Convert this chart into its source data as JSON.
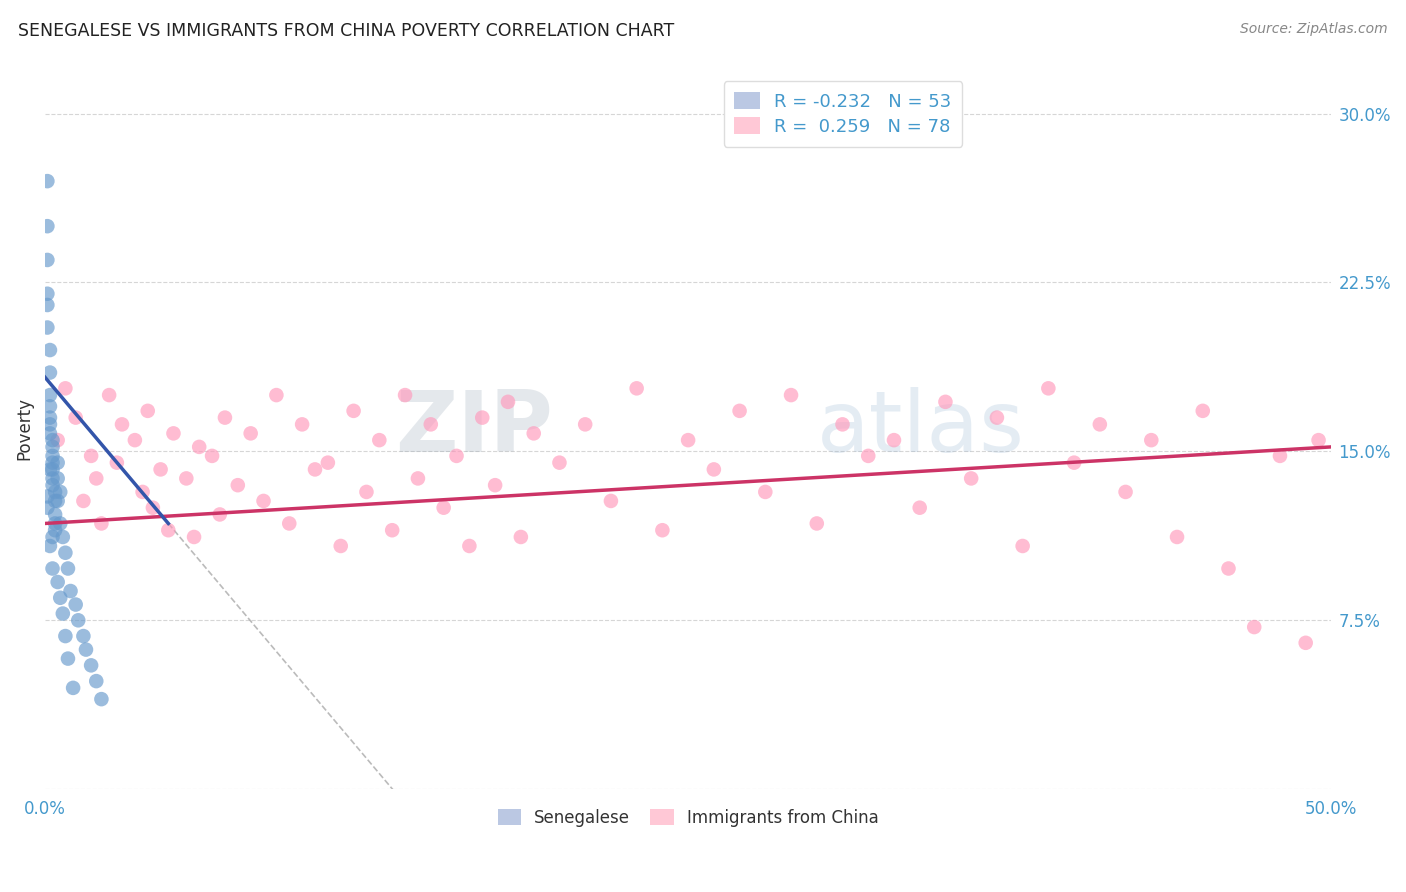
{
  "title": "SENEGALESE VS IMMIGRANTS FROM CHINA POVERTY CORRELATION CHART",
  "source": "Source: ZipAtlas.com",
  "ylabel": "Poverty",
  "xlim": [
    0.0,
    0.5
  ],
  "ylim": [
    0.0,
    0.32
  ],
  "yticks": [
    0.0,
    0.075,
    0.15,
    0.225,
    0.3
  ],
  "ytick_labels": [
    "",
    "7.5%",
    "15.0%",
    "22.5%",
    "30.0%"
  ],
  "xticks": [
    0.0,
    0.1,
    0.2,
    0.3,
    0.4,
    0.5
  ],
  "xtick_labels": [
    "0.0%",
    "",
    "",
    "",
    "",
    "50.0%"
  ],
  "grid_color": "#cccccc",
  "background_color": "#ffffff",
  "senegalese_color": "#6699cc",
  "china_color": "#ff99bb",
  "senegalese_R": -0.232,
  "senegalese_N": 53,
  "china_R": 0.259,
  "china_N": 78,
  "legend_label_1": "Senegalese",
  "legend_label_2": "Immigrants from China",
  "watermark_zip": "ZIP",
  "watermark_atlas": "atlas",
  "sen_line_x0": 0.0,
  "sen_line_y0": 0.183,
  "sen_line_x1": 0.048,
  "sen_line_y1": 0.118,
  "sen_line_end_x": 0.048,
  "dash_line_end_x": 0.22,
  "china_line_x0": 0.0,
  "china_line_y0": 0.118,
  "china_line_x1": 0.5,
  "china_line_y1": 0.152,
  "senegalese_x": [
    0.001,
    0.001,
    0.001,
    0.001,
    0.001,
    0.001,
    0.002,
    0.002,
    0.002,
    0.002,
    0.002,
    0.002,
    0.002,
    0.003,
    0.003,
    0.003,
    0.003,
    0.003,
    0.003,
    0.003,
    0.004,
    0.004,
    0.004,
    0.004,
    0.005,
    0.005,
    0.005,
    0.006,
    0.006,
    0.007,
    0.008,
    0.009,
    0.01,
    0.012,
    0.013,
    0.015,
    0.016,
    0.018,
    0.02,
    0.022,
    0.001,
    0.001,
    0.002,
    0.002,
    0.003,
    0.003,
    0.004,
    0.005,
    0.006,
    0.007,
    0.008,
    0.009,
    0.011
  ],
  "senegalese_y": [
    0.27,
    0.25,
    0.235,
    0.22,
    0.215,
    0.205,
    0.195,
    0.185,
    0.175,
    0.17,
    0.165,
    0.162,
    0.158,
    0.155,
    0.152,
    0.148,
    0.145,
    0.142,
    0.138,
    0.135,
    0.132,
    0.128,
    0.122,
    0.118,
    0.145,
    0.138,
    0.128,
    0.132,
    0.118,
    0.112,
    0.105,
    0.098,
    0.088,
    0.082,
    0.075,
    0.068,
    0.062,
    0.055,
    0.048,
    0.04,
    0.13,
    0.125,
    0.142,
    0.108,
    0.112,
    0.098,
    0.115,
    0.092,
    0.085,
    0.078,
    0.068,
    0.058,
    0.045
  ],
  "china_x": [
    0.005,
    0.008,
    0.012,
    0.015,
    0.018,
    0.02,
    0.022,
    0.025,
    0.028,
    0.03,
    0.035,
    0.038,
    0.04,
    0.042,
    0.045,
    0.048,
    0.05,
    0.055,
    0.058,
    0.06,
    0.065,
    0.068,
    0.07,
    0.075,
    0.08,
    0.085,
    0.09,
    0.095,
    0.1,
    0.105,
    0.11,
    0.115,
    0.12,
    0.125,
    0.13,
    0.135,
    0.14,
    0.145,
    0.15,
    0.155,
    0.16,
    0.165,
    0.17,
    0.175,
    0.18,
    0.185,
    0.19,
    0.2,
    0.21,
    0.22,
    0.23,
    0.24,
    0.25,
    0.26,
    0.27,
    0.28,
    0.29,
    0.3,
    0.31,
    0.32,
    0.33,
    0.34,
    0.35,
    0.36,
    0.37,
    0.38,
    0.39,
    0.4,
    0.41,
    0.42,
    0.43,
    0.44,
    0.45,
    0.46,
    0.47,
    0.48,
    0.49,
    0.495
  ],
  "china_y": [
    0.155,
    0.178,
    0.165,
    0.128,
    0.148,
    0.138,
    0.118,
    0.175,
    0.145,
    0.162,
    0.155,
    0.132,
    0.168,
    0.125,
    0.142,
    0.115,
    0.158,
    0.138,
    0.112,
    0.152,
    0.148,
    0.122,
    0.165,
    0.135,
    0.158,
    0.128,
    0.175,
    0.118,
    0.162,
    0.142,
    0.145,
    0.108,
    0.168,
    0.132,
    0.155,
    0.115,
    0.175,
    0.138,
    0.162,
    0.125,
    0.148,
    0.108,
    0.165,
    0.135,
    0.172,
    0.112,
    0.158,
    0.145,
    0.162,
    0.128,
    0.178,
    0.115,
    0.155,
    0.142,
    0.168,
    0.132,
    0.175,
    0.118,
    0.162,
    0.148,
    0.155,
    0.125,
    0.172,
    0.138,
    0.165,
    0.108,
    0.178,
    0.145,
    0.162,
    0.132,
    0.155,
    0.112,
    0.168,
    0.098,
    0.072,
    0.148,
    0.065,
    0.155
  ]
}
